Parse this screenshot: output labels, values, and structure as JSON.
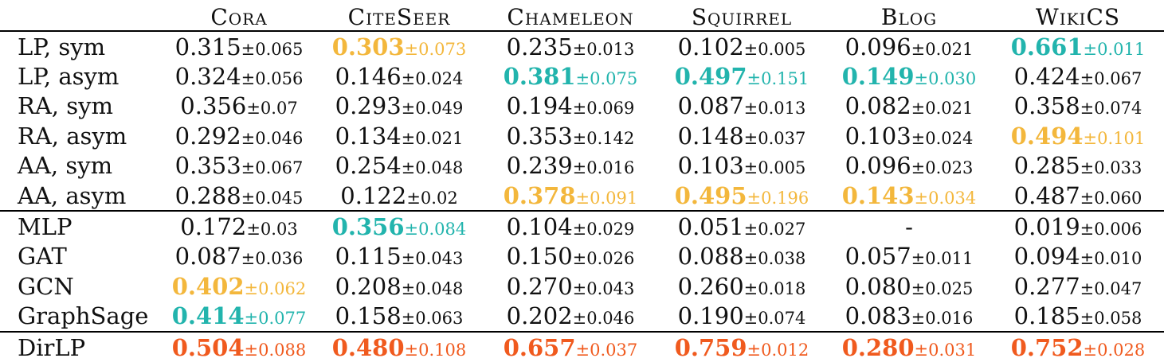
{
  "colors": {
    "best": "#22b4ad",
    "second": "#f3b73c",
    "ours": "#f05a1e"
  },
  "table": {
    "method_header": "",
    "datasets": [
      "Cora",
      "CiteSeer",
      "Chameleon",
      "Squirrel",
      "Blog",
      "WikiCS"
    ],
    "groups": [
      {
        "rows": [
          {
            "method": "LP, sym",
            "cells": [
              {
                "mean": "0.315",
                "sd": "±0.065",
                "hl": ""
              },
              {
                "mean": "0.303",
                "sd": "±0.073",
                "hl": "second"
              },
              {
                "mean": "0.235",
                "sd": "±0.013",
                "hl": ""
              },
              {
                "mean": "0.102",
                "sd": "±0.005",
                "hl": ""
              },
              {
                "mean": "0.096",
                "sd": "±0.021",
                "hl": ""
              },
              {
                "mean": "0.661",
                "sd": "±0.011",
                "hl": "best"
              }
            ]
          },
          {
            "method": "LP, asym",
            "cells": [
              {
                "mean": "0.324",
                "sd": "±0.056",
                "hl": ""
              },
              {
                "mean": "0.146",
                "sd": "±0.024",
                "hl": ""
              },
              {
                "mean": "0.381",
                "sd": "±0.075",
                "hl": "best"
              },
              {
                "mean": "0.497",
                "sd": "±0.151",
                "hl": "best"
              },
              {
                "mean": "0.149",
                "sd": "±0.030",
                "hl": "best"
              },
              {
                "mean": "0.424",
                "sd": "±0.067",
                "hl": ""
              }
            ]
          },
          {
            "method": "RA, sym",
            "cells": [
              {
                "mean": "0.356",
                "sd": "±0.07",
                "hl": ""
              },
              {
                "mean": "0.293",
                "sd": "±0.049",
                "hl": ""
              },
              {
                "mean": "0.194",
                "sd": "±0.069",
                "hl": ""
              },
              {
                "mean": "0.087",
                "sd": "±0.013",
                "hl": ""
              },
              {
                "mean": "0.082",
                "sd": "±0.021",
                "hl": ""
              },
              {
                "mean": "0.358",
                "sd": "±0.074",
                "hl": ""
              }
            ]
          },
          {
            "method": "RA, asym",
            "cells": [
              {
                "mean": "0.292",
                "sd": "±0.046",
                "hl": ""
              },
              {
                "mean": "0.134",
                "sd": "±0.021",
                "hl": ""
              },
              {
                "mean": "0.353",
                "sd": "±0.142",
                "hl": ""
              },
              {
                "mean": "0.148",
                "sd": "±0.037",
                "hl": ""
              },
              {
                "mean": "0.103",
                "sd": "±0.024",
                "hl": ""
              },
              {
                "mean": "0.494",
                "sd": "±0.101",
                "hl": "second"
              }
            ]
          },
          {
            "method": "AA, sym",
            "cells": [
              {
                "mean": "0.353",
                "sd": "±0.067",
                "hl": ""
              },
              {
                "mean": "0.254",
                "sd": "±0.048",
                "hl": ""
              },
              {
                "mean": "0.239",
                "sd": "±0.016",
                "hl": ""
              },
              {
                "mean": "0.103",
                "sd": "±0.005",
                "hl": ""
              },
              {
                "mean": "0.096",
                "sd": "±0.023",
                "hl": ""
              },
              {
                "mean": "0.285",
                "sd": "±0.033",
                "hl": ""
              }
            ]
          },
          {
            "method": "AA, asym",
            "cells": [
              {
                "mean": "0.288",
                "sd": "±0.045",
                "hl": ""
              },
              {
                "mean": "0.122",
                "sd": "±0.02",
                "hl": ""
              },
              {
                "mean": "0.378",
                "sd": "±0.091",
                "hl": "second"
              },
              {
                "mean": "0.495",
                "sd": "±0.196",
                "hl": "second"
              },
              {
                "mean": "0.143",
                "sd": "±0.034",
                "hl": "second"
              },
              {
                "mean": "0.487",
                "sd": "±0.060",
                "hl": ""
              }
            ]
          }
        ]
      },
      {
        "rows": [
          {
            "method": "MLP",
            "cells": [
              {
                "mean": "0.172",
                "sd": "±0.03",
                "hl": ""
              },
              {
                "mean": "0.356",
                "sd": "±0.084",
                "hl": "best"
              },
              {
                "mean": "0.104",
                "sd": "±0.029",
                "hl": ""
              },
              {
                "mean": "0.051",
                "sd": "±0.027",
                "hl": ""
              },
              {
                "mean": "-",
                "sd": "",
                "hl": ""
              },
              {
                "mean": "0.019",
                "sd": "±0.006",
                "hl": ""
              }
            ]
          },
          {
            "method": "GAT",
            "cells": [
              {
                "mean": "0.087",
                "sd": "±0.036",
                "hl": ""
              },
              {
                "mean": "0.115",
                "sd": "±0.043",
                "hl": ""
              },
              {
                "mean": "0.150",
                "sd": "±0.026",
                "hl": ""
              },
              {
                "mean": "0.088",
                "sd": "±0.038",
                "hl": ""
              },
              {
                "mean": "0.057",
                "sd": "±0.011",
                "hl": ""
              },
              {
                "mean": "0.094",
                "sd": "±0.010",
                "hl": ""
              }
            ]
          },
          {
            "method": "GCN",
            "cells": [
              {
                "mean": "0.402",
                "sd": "±0.062",
                "hl": "second"
              },
              {
                "mean": "0.208",
                "sd": "±0.048",
                "hl": ""
              },
              {
                "mean": "0.270",
                "sd": "±0.043",
                "hl": ""
              },
              {
                "mean": "0.260",
                "sd": "±0.018",
                "hl": ""
              },
              {
                "mean": "0.080",
                "sd": "±0.025",
                "hl": ""
              },
              {
                "mean": "0.277",
                "sd": "±0.047",
                "hl": ""
              }
            ]
          },
          {
            "method": "GraphSage",
            "cells": [
              {
                "mean": "0.414",
                "sd": "±0.077",
                "hl": "best"
              },
              {
                "mean": "0.158",
                "sd": "±0.063",
                "hl": ""
              },
              {
                "mean": "0.202",
                "sd": "±0.046",
                "hl": ""
              },
              {
                "mean": "0.190",
                "sd": "±0.074",
                "hl": ""
              },
              {
                "mean": "0.083",
                "sd": "±0.016",
                "hl": ""
              },
              {
                "mean": "0.185",
                "sd": "±0.058",
                "hl": ""
              }
            ]
          }
        ]
      },
      {
        "rows": [
          {
            "method": "DirLP",
            "cells": [
              {
                "mean": "0.504",
                "sd": "±0.088",
                "hl": "winner"
              },
              {
                "mean": "0.480",
                "sd": "±0.108",
                "hl": "winner"
              },
              {
                "mean": "0.657",
                "sd": "±0.037",
                "hl": "winner"
              },
              {
                "mean": "0.759",
                "sd": "±0.012",
                "hl": "winner"
              },
              {
                "mean": "0.280",
                "sd": "±0.031",
                "hl": "winner"
              },
              {
                "mean": "0.752",
                "sd": "±0.028",
                "hl": "winner"
              }
            ]
          }
        ]
      }
    ]
  }
}
